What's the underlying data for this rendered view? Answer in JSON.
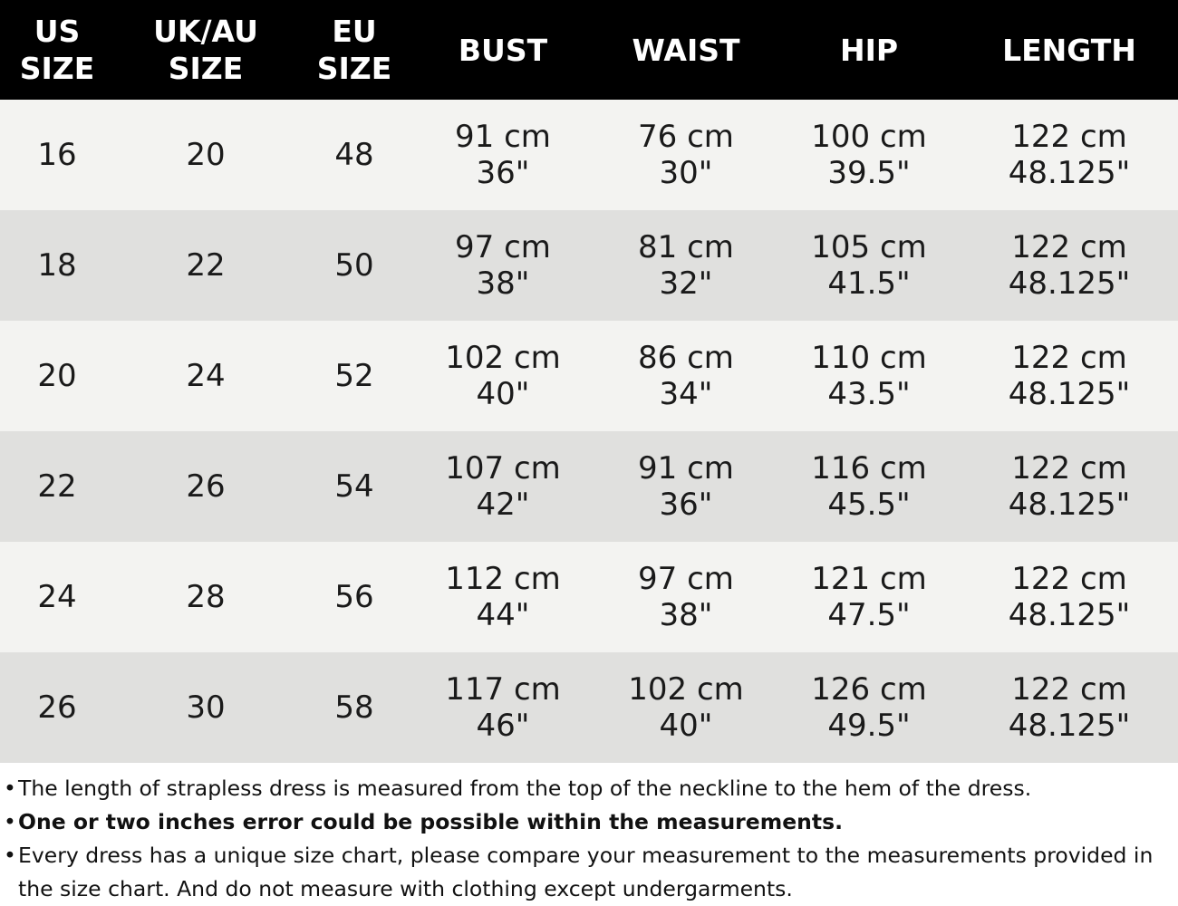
{
  "table": {
    "headers": [
      "US\nSIZE",
      "UK/AU\nSIZE",
      "EU\nSIZE",
      "BUST",
      "WAIST",
      "HIP",
      "LENGTH"
    ],
    "rows": [
      {
        "us": "16",
        "ukau": "20",
        "eu": "48",
        "bust_cm": "91 cm",
        "bust_in": "36\"",
        "waist_cm": "76 cm",
        "waist_in": "30\"",
        "hip_cm": "100 cm",
        "hip_in": "39.5\"",
        "length_cm": "122 cm",
        "length_in": "48.125\""
      },
      {
        "us": "18",
        "ukau": "22",
        "eu": "50",
        "bust_cm": "97 cm",
        "bust_in": "38\"",
        "waist_cm": "81 cm",
        "waist_in": "32\"",
        "hip_cm": "105 cm",
        "hip_in": "41.5\"",
        "length_cm": "122 cm",
        "length_in": "48.125\""
      },
      {
        "us": "20",
        "ukau": "24",
        "eu": "52",
        "bust_cm": "102 cm",
        "bust_in": "40\"",
        "waist_cm": "86 cm",
        "waist_in": "34\"",
        "hip_cm": "110 cm",
        "hip_in": "43.5\"",
        "length_cm": "122 cm",
        "length_in": "48.125\""
      },
      {
        "us": "22",
        "ukau": "26",
        "eu": "54",
        "bust_cm": "107 cm",
        "bust_in": "42\"",
        "waist_cm": "91 cm",
        "waist_in": "36\"",
        "hip_cm": "116 cm",
        "hip_in": "45.5\"",
        "length_cm": "122 cm",
        "length_in": "48.125\""
      },
      {
        "us": "24",
        "ukau": "28",
        "eu": "56",
        "bust_cm": "112 cm",
        "bust_in": "44\"",
        "waist_cm": "97 cm",
        "waist_in": "38\"",
        "hip_cm": "121 cm",
        "hip_in": "47.5\"",
        "length_cm": "122 cm",
        "length_in": "48.125\""
      },
      {
        "us": "26",
        "ukau": "30",
        "eu": "58",
        "bust_cm": "117 cm",
        "bust_in": "46\"",
        "waist_cm": "102 cm",
        "waist_in": "40\"",
        "hip_cm": "126 cm",
        "hip_in": "49.5\"",
        "length_cm": "122 cm",
        "length_in": "48.125\""
      }
    ]
  },
  "notes": [
    {
      "bullet": "•",
      "text": "The length of strapless dress is measured from the top of the neckline to the hem of the dress."
    },
    {
      "bullet": "•",
      "text": "One or two inches error could be possible within the measurements."
    },
    {
      "bullet": "•",
      "text": "Every dress has a unique size chart, please compare your measurement to the measurements provided in the size chart. And do not measure with clothing except undergarments."
    }
  ],
  "colors": {
    "header_bg": "#000000",
    "header_text": "#ffffff",
    "row_light": "#f3f3f1",
    "row_dark": "#e0e0de",
    "body_text": "#1a1a1a"
  }
}
